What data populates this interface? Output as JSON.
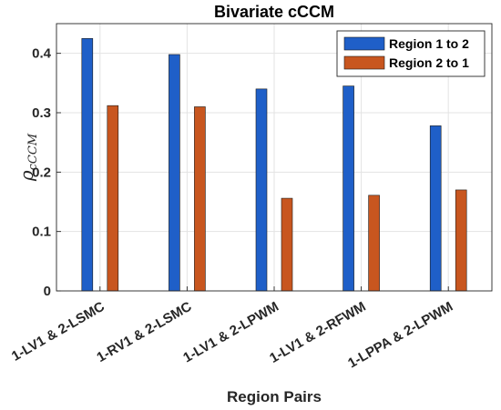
{
  "chart_data": {
    "type": "bar",
    "title": "Bivariate cCCM",
    "xlabel": "Region Pairs",
    "ylabel": {
      "symbol": "ρ",
      "subscript": "cCCM"
    },
    "ylim": [
      0,
      0.45
    ],
    "yticks": [
      0,
      0.1,
      0.2,
      0.3,
      0.4
    ],
    "ytick_labels": [
      "0",
      "0.1",
      "0.2",
      "0.3",
      "0.4"
    ],
    "grid": true,
    "legend_position": "top-right",
    "categories": [
      "1-LV1 & 2-LSMC",
      "1-RV1 & 2-LSMC",
      "1-LV1 & 2-LPWM",
      "1-LV1 & 2-RFWM",
      "1-LPPA & 2-LPWM"
    ],
    "series": [
      {
        "name": "Region 1 to 2",
        "color": "#1f5fc8",
        "values": [
          0.425,
          0.398,
          0.34,
          0.345,
          0.278
        ]
      },
      {
        "name": "Region 2 to 1",
        "color": "#c8561f",
        "values": [
          0.312,
          0.31,
          0.156,
          0.161,
          0.17
        ]
      }
    ]
  }
}
